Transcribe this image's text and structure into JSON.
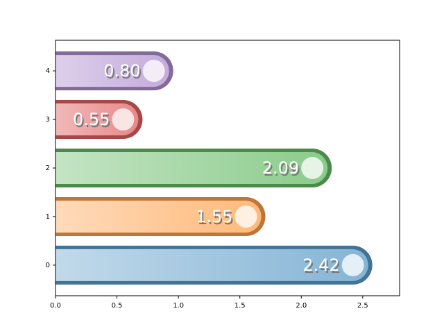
{
  "chart_data": {
    "type": "bar",
    "orientation": "horizontal",
    "categories": [
      "0",
      "1",
      "2",
      "3",
      "4"
    ],
    "values": [
      2.42,
      1.55,
      2.09,
      0.55,
      0.8
    ],
    "value_labels": [
      "2.42",
      "1.55",
      "2.09",
      "0.55",
      "0.80"
    ],
    "colors": [
      "#1f77b4",
      "#ff7f0e",
      "#2ca02c",
      "#d62728",
      "#9467bd"
    ],
    "xlim": [
      0,
      2.8
    ],
    "xticks": [
      {
        "value": 0,
        "label": "0.0"
      },
      {
        "value": 0.5,
        "label": "0.5"
      },
      {
        "value": 1,
        "label": "1.0"
      },
      {
        "value": 1.5,
        "label": "1.5"
      },
      {
        "value": 2,
        "label": "2.0"
      },
      {
        "value": 2.5,
        "label": "2.5"
      }
    ],
    "ylim": [
      -0.63,
      4.63
    ]
  }
}
